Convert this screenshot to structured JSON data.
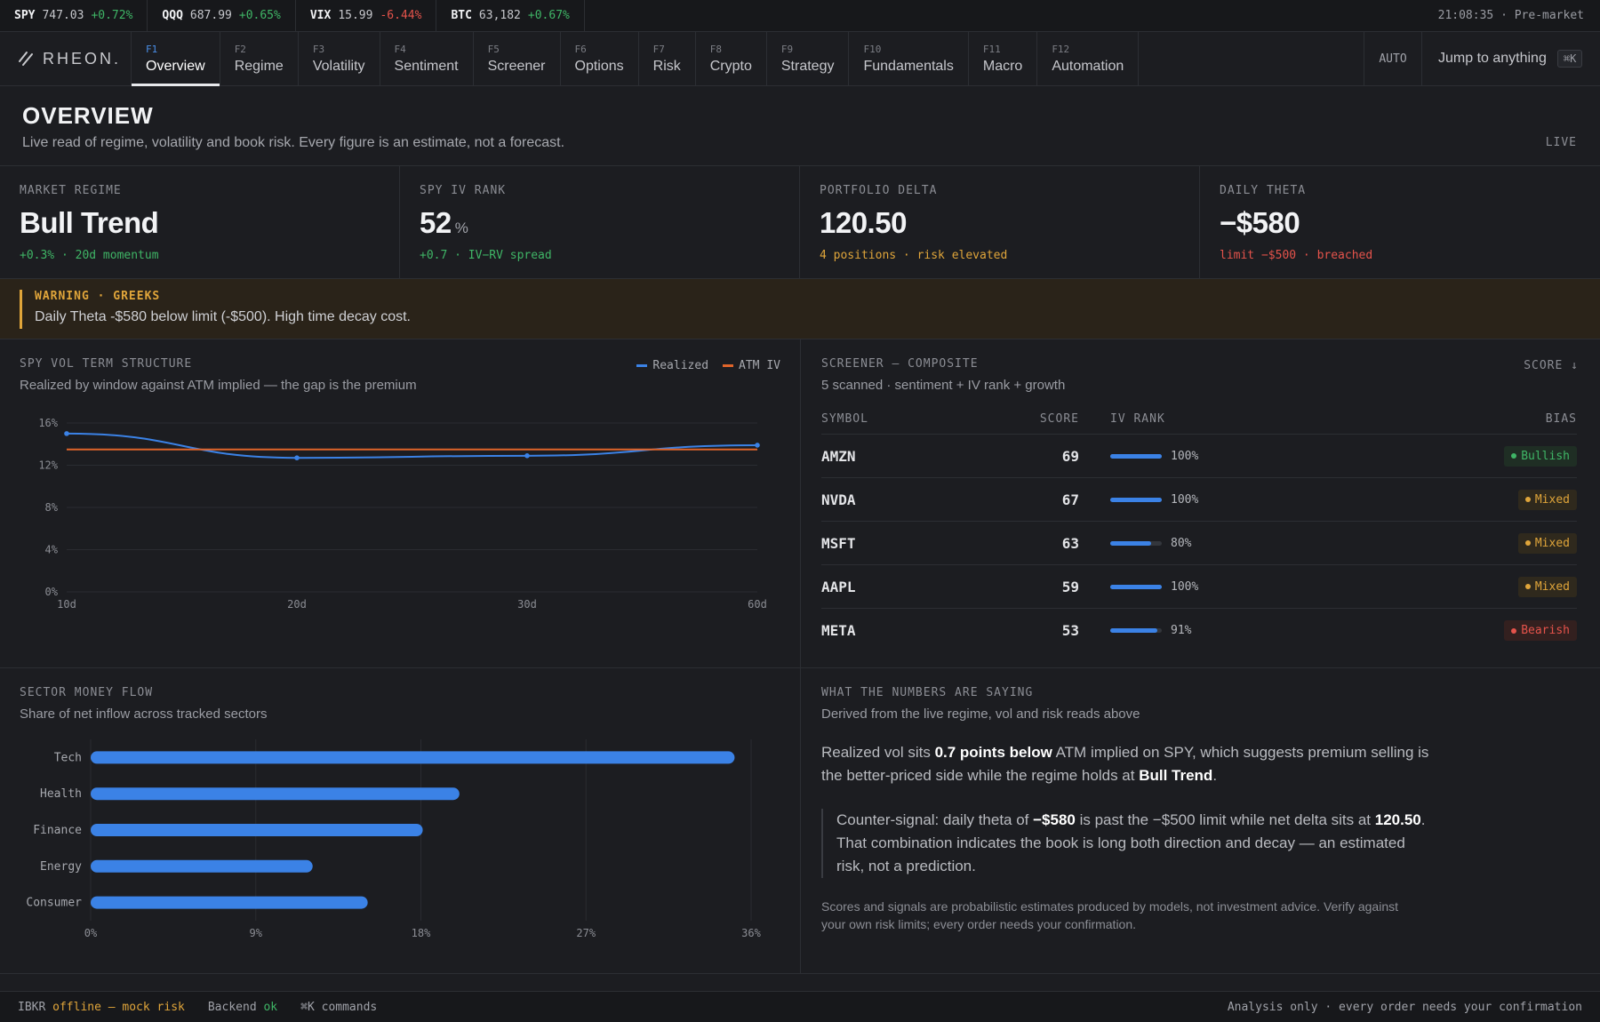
{
  "ticker": {
    "items": [
      {
        "symbol": "SPY",
        "price": "747.03",
        "change": "+0.72%",
        "dir": "up"
      },
      {
        "symbol": "QQQ",
        "price": "687.99",
        "change": "+0.65%",
        "dir": "up"
      },
      {
        "symbol": "VIX",
        "price": "15.99",
        "change": "-6.44%",
        "dir": "down"
      },
      {
        "symbol": "BTC",
        "price": "63,182",
        "change": "+0.67%",
        "dir": "up"
      }
    ],
    "clock": "21:08:35 · Pre-market"
  },
  "nav": {
    "brand": "RHEON.",
    "tabs": [
      {
        "key": "F1",
        "label": "Overview",
        "active": true
      },
      {
        "key": "F2",
        "label": "Regime"
      },
      {
        "key": "F3",
        "label": "Volatility"
      },
      {
        "key": "F4",
        "label": "Sentiment"
      },
      {
        "key": "F5",
        "label": "Screener"
      },
      {
        "key": "F6",
        "label": "Options"
      },
      {
        "key": "F7",
        "label": "Risk"
      },
      {
        "key": "F8",
        "label": "Crypto"
      },
      {
        "key": "F9",
        "label": "Strategy"
      },
      {
        "key": "F10",
        "label": "Fundamentals"
      },
      {
        "key": "F11",
        "label": "Macro"
      },
      {
        "key": "F12",
        "label": "Automation"
      }
    ],
    "auto": "AUTO",
    "jump": "Jump to anything",
    "jump_kbd": "⌘K"
  },
  "header": {
    "title": "OVERVIEW",
    "subtitle": "Live read of regime, volatility and book risk. Every figure is an estimate, not a forecast.",
    "live": "LIVE"
  },
  "kpis": [
    {
      "label": "MARKET REGIME",
      "value": "Bull Trend",
      "unit": "",
      "foot": "+0.3% · 20d momentum",
      "tone": "green",
      "value_tone": ""
    },
    {
      "label": "SPY IV RANK",
      "value": "52",
      "unit": "%",
      "foot": "+0.7 · IV−RV spread",
      "tone": "green",
      "value_tone": ""
    },
    {
      "label": "PORTFOLIO DELTA",
      "value": "120.50",
      "unit": "",
      "foot": "4 positions · risk elevated",
      "tone": "amber",
      "value_tone": ""
    },
    {
      "label": "DAILY THETA",
      "value": "−$580",
      "unit": "",
      "foot": "limit −$500 · breached",
      "tone": "red",
      "value_tone": "red"
    }
  ],
  "warning": {
    "title": "WARNING · GREEKS",
    "message": "Daily Theta -$580 below limit (-$500). High time decay cost."
  },
  "vol_panel": {
    "title": "SPY VOL TERM STRUCTURE",
    "subtitle": "Realized by window against ATM implied — the gap is the premium",
    "legend": [
      {
        "name": "Realized",
        "color": "#3b82e6"
      },
      {
        "name": "ATM IV",
        "color": "#e0652a"
      }
    ]
  },
  "chart_data": [
    {
      "type": "line",
      "x": [
        "10d",
        "20d",
        "30d",
        "60d"
      ],
      "series": [
        {
          "name": "Realized",
          "values": [
            15.0,
            12.7,
            12.9,
            13.9
          ],
          "color": "#3b82e6"
        },
        {
          "name": "ATM IV",
          "values": [
            13.5,
            13.5,
            13.5,
            13.5
          ],
          "color": "#e0652a"
        }
      ],
      "yticks": [
        "0%",
        "4%",
        "8%",
        "12%",
        "16%"
      ],
      "ylim": [
        0,
        16
      ],
      "grid": true,
      "legend": "top-right"
    },
    {
      "type": "bar",
      "orientation": "horizontal",
      "categories": [
        "Tech",
        "Health",
        "Finance",
        "Energy",
        "Consumer"
      ],
      "values": [
        35.1,
        20.1,
        18.1,
        12.1,
        15.1
      ],
      "xticks": [
        "0%",
        "9%",
        "18%",
        "27%",
        "36%"
      ],
      "xlim": [
        0,
        36
      ],
      "grid": true,
      "color": "#3b82e6"
    }
  ],
  "screener": {
    "title": "SCREENER — COMPOSITE",
    "subtitle": "5 scanned · sentiment + IV rank + growth",
    "sort": "SCORE ↓",
    "columns": {
      "symbol": "SYMBOL",
      "score": "SCORE",
      "iv": "IV RANK",
      "bias": "BIAS"
    },
    "rows": [
      {
        "symbol": "AMZN",
        "score": "69",
        "iv": 100,
        "iv_label": "100%",
        "bias": "Bullish",
        "tone": "bull"
      },
      {
        "symbol": "NVDA",
        "score": "67",
        "iv": 100,
        "iv_label": "100%",
        "bias": "Mixed",
        "tone": "mix"
      },
      {
        "symbol": "MSFT",
        "score": "63",
        "iv": 80,
        "iv_label": "80%",
        "bias": "Mixed",
        "tone": "mix"
      },
      {
        "symbol": "AAPL",
        "score": "59",
        "iv": 100,
        "iv_label": "100%",
        "bias": "Mixed",
        "tone": "mix"
      },
      {
        "symbol": "META",
        "score": "53",
        "iv": 91,
        "iv_label": "91%",
        "bias": "Bearish",
        "tone": "bear"
      }
    ]
  },
  "flow_panel": {
    "title": "SECTOR MONEY FLOW",
    "subtitle": "Share of net inflow across tracked sectors"
  },
  "saying": {
    "title": "WHAT THE NUMBERS ARE SAYING",
    "subtitle": "Derived from the live regime, vol and risk reads above",
    "p1_a": "Realized vol sits ",
    "p1_b": "0.7 points below",
    "p1_c": " ATM implied on SPY, which suggests premium selling is the better-priced side while the regime holds at ",
    "p1_d": "Bull Trend",
    "p1_e": ".",
    "p2_a": "Counter-signal: daily theta of ",
    "p2_b": "−$580",
    "p2_c": " is past the −$500 limit while net delta sits at ",
    "p2_d": "120.50",
    "p2_e": ". That combination indicates the book is long both direction and decay — an estimated risk, not a prediction.",
    "disclaimer": "Scores and signals are probabilistic estimates produced by models, not investment advice. Verify against your own risk limits; every order needs your confirmation."
  },
  "status": {
    "ibkr_label": "IBKR",
    "ibkr_state": "offline — mock risk",
    "backend_label": "Backend",
    "backend_state": "ok",
    "commands": "⌘K commands",
    "right": "Analysis only · every order needs your confirmation"
  }
}
